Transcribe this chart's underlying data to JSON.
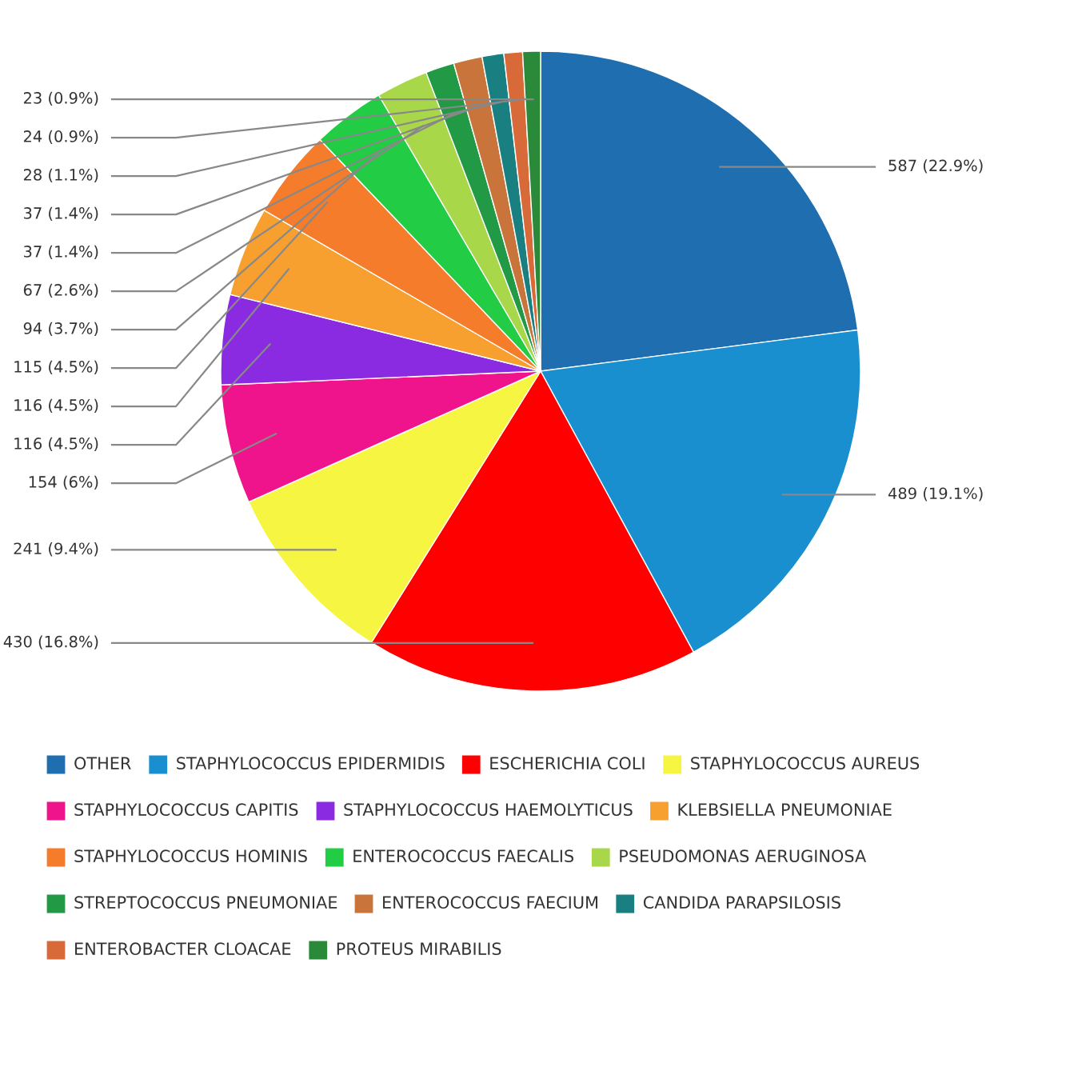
{
  "chart_data": {
    "type": "pie",
    "legend": "bottom",
    "categories": [
      "OTHER",
      "STAPHYLOCOCCUS EPIDERMIDIS",
      "ESCHERICHIA COLI",
      "STAPHYLOCOCCUS AUREUS",
      "STAPHYLOCOCCUS CAPITIS",
      "STAPHYLOCOCCUS HAEMOLYTICUS",
      "KLEBSIELLA PNEUMONIAE",
      "STAPHYLOCOCCUS HOMINIS",
      "ENTEROCOCCUS FAECALIS",
      "PSEUDOMONAS AERUGINOSA",
      "STREPTOCOCCUS PNEUMONIAE",
      "ENTEROCOCCUS FAECIUM",
      "CANDIDA PARAPSILOSIS",
      "ENTEROBACTER CLOACAE",
      "PROTEUS MIRABILIS"
    ],
    "values": [
      587,
      489,
      430,
      241,
      154,
      116,
      116,
      115,
      94,
      67,
      37,
      37,
      28,
      24,
      23
    ],
    "value_labels": [
      "587 (22.9%)",
      "489 (19.1%)",
      "430 (16.8%)",
      "241 (9.4%)",
      "154 (6%)",
      "116 (4.5%)",
      "116 (4.5%)",
      "115 (4.5%)",
      "94 (3.7%)",
      "67 (2.6%)",
      "37 (1.4%)",
      "37 (1.4%)",
      "28 (1.1%)",
      "24 (0.9%)",
      "23 (0.9%)"
    ],
    "colors": [
      "#1f6fb0",
      "#1a8fd0",
      "#ff0000",
      "#f5f542",
      "#f0148c",
      "#8a2be2",
      "#f7a030",
      "#f57c2a",
      "#22cc44",
      "#a8d84a",
      "#229944",
      "#c8743a",
      "#1a7f80",
      "#d86a3a",
      "#2a8a3a"
    ]
  }
}
